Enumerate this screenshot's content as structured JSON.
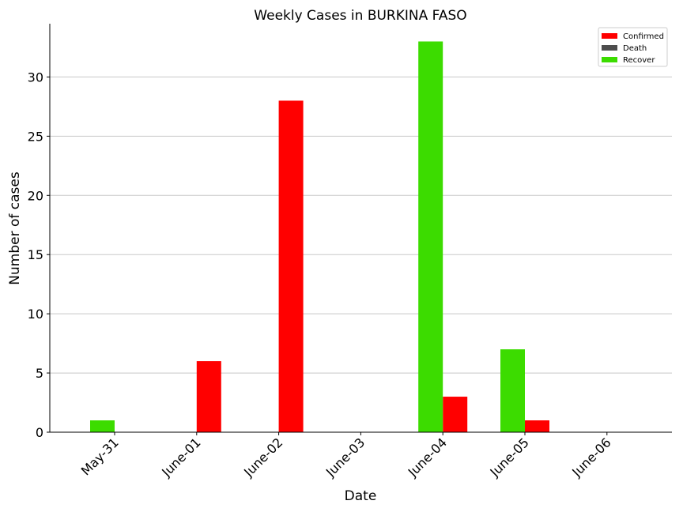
{
  "chart_data": {
    "type": "bar",
    "title": "Weekly Cases in BURKINA FASO",
    "xlabel": "Date",
    "ylabel": "Number of cases",
    "categories": [
      "May-31",
      "June-01",
      "June-02",
      "June-03",
      "June-04",
      "June-05",
      "June-06"
    ],
    "series": [
      {
        "name": "Confirmed",
        "color": "#ff0000",
        "values": [
          0,
          6,
          28,
          0,
          3,
          1,
          0
        ]
      },
      {
        "name": "Death",
        "color": "#4d4d4d",
        "values": [
          0,
          0,
          0,
          0,
          0,
          0,
          0
        ]
      },
      {
        "name": "Recover",
        "color": "#3cdc00",
        "values": [
          1,
          0,
          0,
          0,
          33,
          7,
          0
        ]
      }
    ],
    "ylim": [
      0,
      34.5
    ],
    "yticks": [
      0,
      5,
      10,
      15,
      20,
      25,
      30
    ],
    "grid": "horizontal",
    "legend_position": "top-right"
  }
}
